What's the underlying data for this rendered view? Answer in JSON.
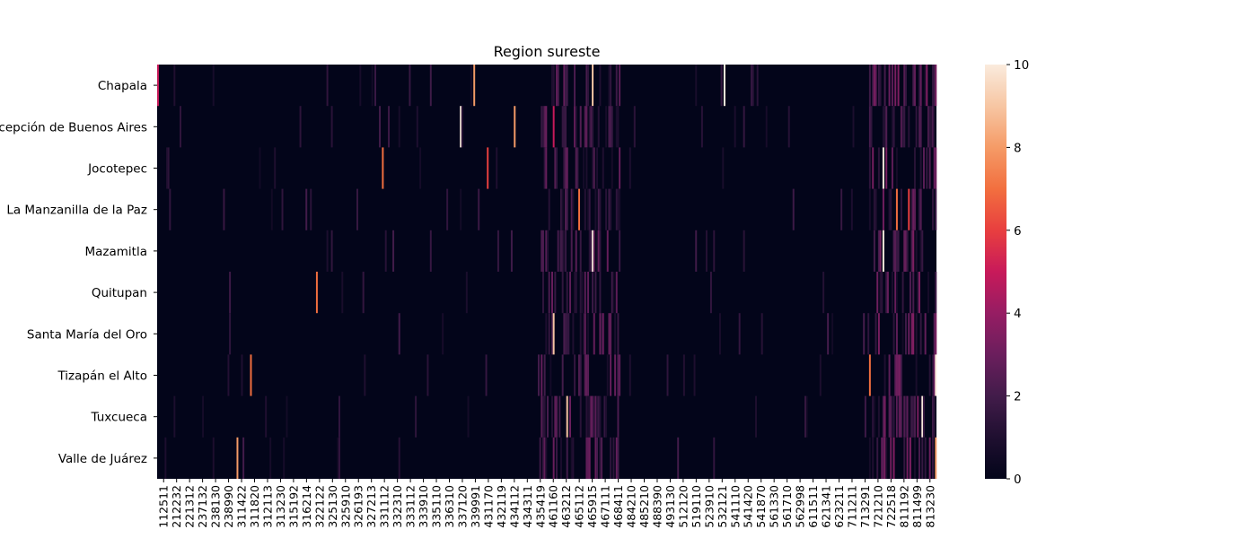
{
  "chart_data": {
    "type": "heatmap",
    "title": "Region sureste",
    "xlabel": "",
    "ylabel": "",
    "rows": [
      "Chapala",
      "Concepción de Buenos Aires",
      "Jocotepec",
      "La Manzanilla de la Paz",
      "Mazamitla",
      "Quitupan",
      "Santa María del Oro",
      "Tizapán el Alto",
      "Tuxcueca",
      "Valle de Juárez"
    ],
    "x_tick_labels": [
      "112511",
      "212232",
      "221312",
      "237132",
      "238130",
      "238990",
      "311422",
      "311820",
      "312113",
      "313230",
      "315192",
      "316214",
      "322122",
      "325130",
      "325910",
      "326193",
      "327213",
      "331112",
      "332310",
      "333112",
      "333910",
      "335110",
      "336310",
      "337120",
      "339991",
      "431170",
      "432119",
      "434112",
      "434311",
      "435419",
      "461160",
      "463212",
      "465112",
      "465915",
      "467111",
      "468411",
      "484210",
      "485210",
      "488390",
      "493130",
      "512120",
      "519110",
      "523910",
      "532121",
      "541110",
      "541420",
      "541870",
      "561330",
      "561710",
      "562998",
      "611511",
      "621341",
      "623211",
      "711211",
      "713291",
      "721210",
      "722518",
      "811192",
      "811499",
      "813230"
    ],
    "colorbar": {
      "min": 0,
      "max": 10,
      "ticks": [
        0,
        2,
        4,
        6,
        8,
        10
      ]
    },
    "value_range": [
      0,
      10
    ],
    "approx_num_columns": 520,
    "column_blocks": [
      {
        "x_from": "112511",
        "x_to": "435419",
        "typical_value": 0.2,
        "note": "mostly zero with sparse isolated cells"
      },
      {
        "x_from": "435419",
        "x_to": "468411",
        "typical_value": 1.5,
        "note": "dense block of low-to-mid values"
      },
      {
        "x_from": "468411",
        "x_to": "713291",
        "typical_value": 0.4,
        "note": "mostly zero, active mainly in Chapala and Jocotepec rows"
      },
      {
        "x_from": "713291",
        "x_to": "813230",
        "typical_value": 1.8,
        "note": "dense block of low-to-high values"
      }
    ],
    "notable_cells": [
      {
        "row": "Chapala",
        "x": "112511",
        "value": 5
      },
      {
        "row": "Chapala",
        "x": "339991",
        "value": 8
      },
      {
        "row": "Chapala",
        "x": "532121",
        "value": 10
      },
      {
        "row": "Chapala",
        "x": "465915",
        "value": 9
      },
      {
        "row": "Concepción de Buenos Aires",
        "x": "337120",
        "value": 10
      },
      {
        "row": "Concepción de Buenos Aires",
        "x": "434112",
        "value": 8
      },
      {
        "row": "Concepción de Buenos Aires",
        "x": "461160",
        "value": 5
      },
      {
        "row": "Jocotepec",
        "x": "331112",
        "value": 7
      },
      {
        "row": "Jocotepec",
        "x": "431170",
        "value": 6
      },
      {
        "row": "Jocotepec",
        "x": "721210",
        "value": 10
      },
      {
        "row": "La Manzanilla de la Paz",
        "x": "465112",
        "value": 7
      },
      {
        "row": "La Manzanilla de la Paz",
        "x": "722518",
        "value": 7
      },
      {
        "row": "La Manzanilla de la Paz",
        "x": "811192",
        "value": 6
      },
      {
        "row": "Mazamitla",
        "x": "465915",
        "value": 10
      },
      {
        "row": "Mazamitla",
        "x": "721210",
        "value": 10
      },
      {
        "row": "Quitupan",
        "x": "322122",
        "value": 7
      },
      {
        "row": "Santa María del Oro",
        "x": "461160",
        "value": 9
      },
      {
        "row": "Tizapán el Alto",
        "x": "311820",
        "value": 7
      },
      {
        "row": "Tizapán el Alto",
        "x": "713291",
        "value": 7
      },
      {
        "row": "Tizapán el Alto",
        "x": "813230",
        "value": 10
      },
      {
        "row": "Tuxcueca",
        "x": "463212",
        "value": 9
      },
      {
        "row": "Tuxcueca",
        "x": "811499",
        "value": 10
      },
      {
        "row": "Valle de Juárez",
        "x": "311422",
        "value": 8
      },
      {
        "row": "Valle de Juárez",
        "x": "813230",
        "value": 8
      }
    ]
  }
}
